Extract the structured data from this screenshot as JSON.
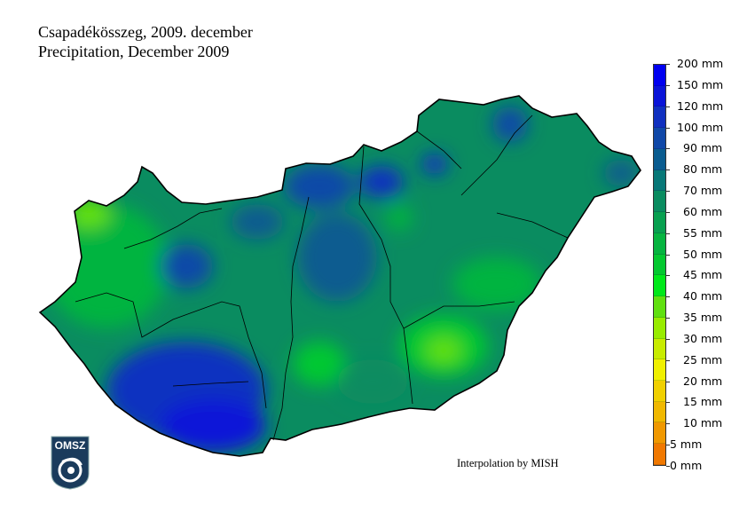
{
  "title_hu": "Csapadékösszeg, 2009. december",
  "title_en": "Precipitation, December 2009",
  "credit": "Interpolation by MISH",
  "logo_text": "OMSZ",
  "legend": {
    "unit": "mm",
    "labels": [
      "200 mm",
      "150 mm",
      "120 mm",
      "100 mm",
      "90 mm",
      "80 mm",
      "70 mm",
      "60 mm",
      "55 mm",
      "50 mm",
      "45 mm",
      "40 mm",
      "35 mm",
      "30 mm",
      "25 mm",
      "20 mm",
      "15 mm",
      "10 mm",
      "5 mm",
      "0 mm"
    ],
    "colors": [
      "#0000f0",
      "#0a14d8",
      "#1030c0",
      "#1048a8",
      "#0a5c90",
      "#087878",
      "#0a8c60",
      "#08a050",
      "#06b440",
      "#04c830",
      "#00e81a",
      "#60e010",
      "#98ec00",
      "#c8ec00",
      "#f0f000",
      "#f0d000",
      "#f0b800",
      "#f09800",
      "#f07800"
    ]
  }
}
